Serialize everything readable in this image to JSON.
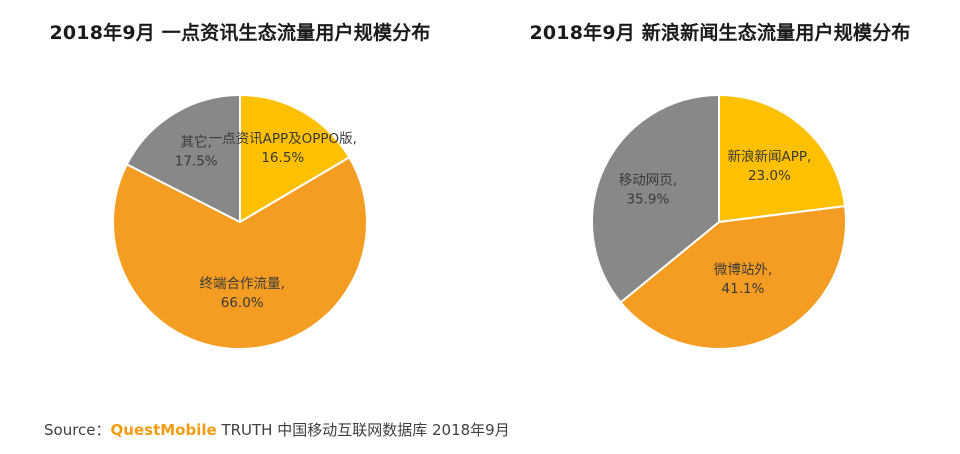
{
  "chart_data": [
    {
      "type": "pie",
      "title": "2018年9月 一点资讯生态流量用户规模分布",
      "start_angle_deg": 0,
      "slices": [
        {
          "label": "一点资讯APP及OPPO版,",
          "value_text": "16.5%",
          "value": 16.5,
          "color": "#ffc000"
        },
        {
          "label": "终端合作流量,",
          "value_text": "66.0%",
          "value": 66.0,
          "color": "#f59d22"
        },
        {
          "label": "其它,",
          "value_text": "17.5%",
          "value": 17.5,
          "color": "#888888"
        }
      ]
    },
    {
      "type": "pie",
      "title": "2018年9月 新浪新闻生态流量用户规模分布",
      "start_angle_deg": 0,
      "slices": [
        {
          "label": "新浪新闻APP,",
          "value_text": "23.0%",
          "value": 23.0,
          "color": "#ffc000"
        },
        {
          "label": "微博站外,",
          "value_text": "41.1%",
          "value": 41.1,
          "color": "#f59d22"
        },
        {
          "label": "移动网页,",
          "value_text": "35.9%",
          "value": 35.9,
          "color": "#888888"
        }
      ]
    }
  ],
  "source": {
    "prefix": "Source：",
    "brand": "QuestMobile",
    "rest": " TRUTH 中国移动互联网数据库 2018年9月"
  }
}
